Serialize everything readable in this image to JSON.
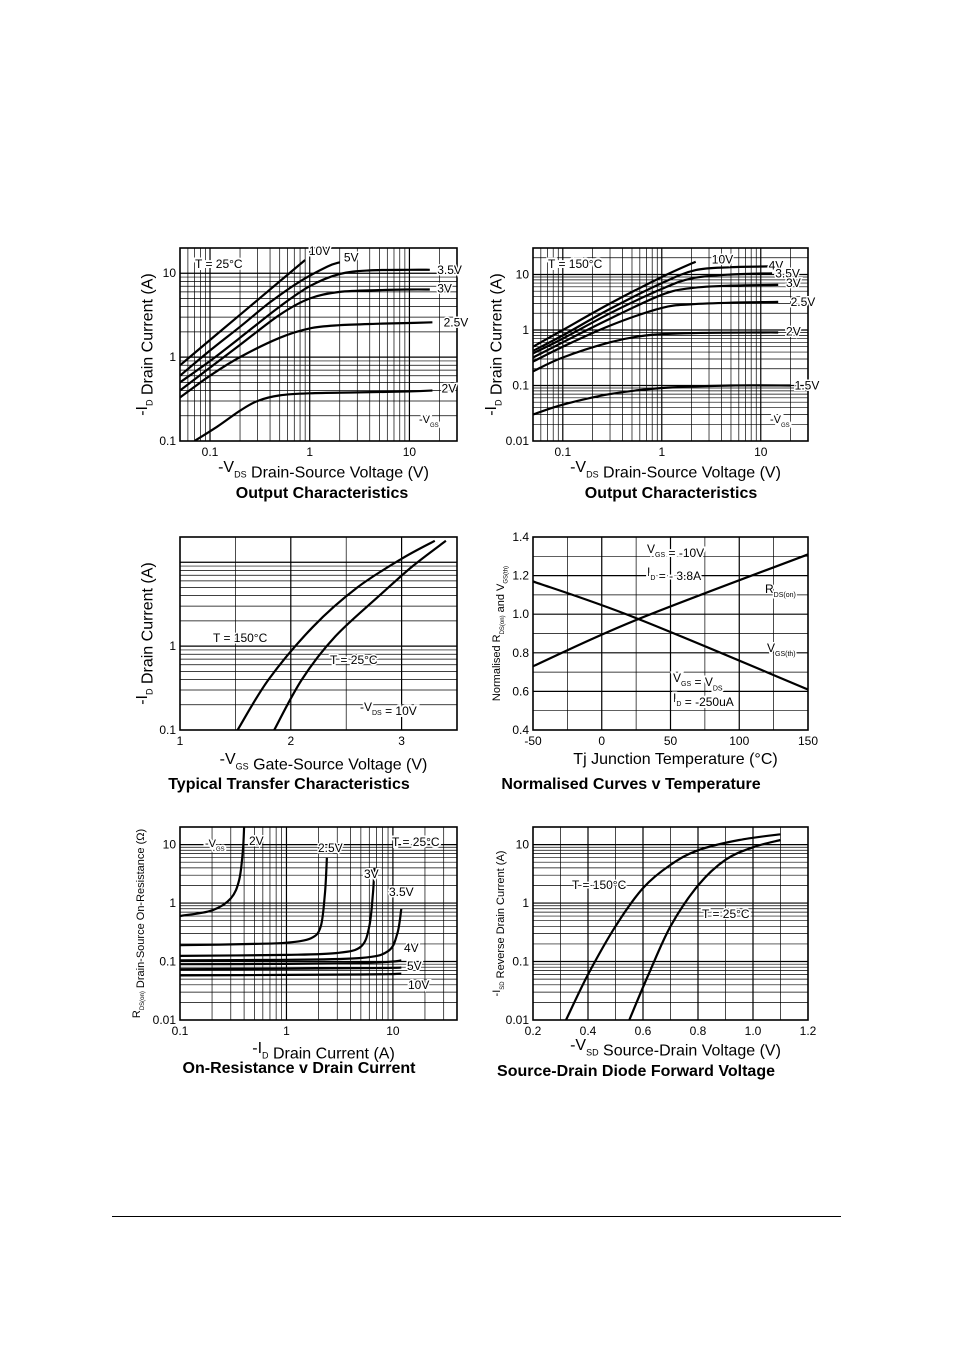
{
  "chart_data": [
    {
      "id": "output-25",
      "type": "line",
      "title": "Output Characteristics",
      "xlabel": "-V_DS Drain-Source Voltage (V)",
      "ylabel": "-I_D Drain Current (A)",
      "xscale": "log",
      "yscale": "log",
      "xlim": [
        0.05,
        30
      ],
      "ylim": [
        0.1,
        20
      ],
      "x_ticks": [
        0.1,
        1,
        10
      ],
      "x_tick_labels": [
        "0.1",
        "1",
        "10"
      ],
      "y_ticks": [
        0.1,
        1,
        10
      ],
      "y_tick_labels": [
        "0.1",
        "1",
        "10"
      ],
      "grid": true,
      "annotations": [
        "T = 25°C"
      ],
      "legend_title": "-V_GS",
      "series": [
        {
          "name": "10V",
          "label_at": [
            0.98,
            18.5
          ],
          "points": [
            [
              0.05,
              0.8
            ],
            [
              0.1,
              1.6
            ],
            [
              0.2,
              3.2
            ],
            [
              0.5,
              8
            ],
            [
              0.9,
              14.4
            ]
          ]
        },
        {
          "name": "5V",
          "label_at": [
            2.2,
            15.5
          ],
          "points": [
            [
              0.05,
              0.6
            ],
            [
              0.1,
              1.2
            ],
            [
              0.2,
              2.3
            ],
            [
              0.4,
              4.5
            ],
            [
              0.8,
              8
            ],
            [
              1.5,
              12
            ],
            [
              2.0,
              13.5
            ]
          ]
        },
        {
          "name": "3.5V",
          "label_at": [
            19,
            11
          ],
          "points": [
            [
              0.05,
              0.5
            ],
            [
              0.1,
              0.9
            ],
            [
              0.2,
              1.7
            ],
            [
              0.5,
              4
            ],
            [
              1,
              7
            ],
            [
              2,
              9.8
            ],
            [
              4,
              10.8
            ],
            [
              10,
              11
            ],
            [
              16,
              11
            ]
          ]
        },
        {
          "name": "3V",
          "label_at": [
            19,
            6.6
          ],
          "points": [
            [
              0.05,
              0.4
            ],
            [
              0.1,
              0.75
            ],
            [
              0.2,
              1.4
            ],
            [
              0.5,
              3.2
            ],
            [
              1,
              5
            ],
            [
              2,
              6
            ],
            [
              5,
              6.3
            ],
            [
              10,
              6.4
            ],
            [
              16,
              6.4
            ]
          ]
        },
        {
          "name": "2.5V",
          "label_at": [
            22,
            2.6
          ],
          "points": [
            [
              0.05,
              0.33
            ],
            [
              0.1,
              0.6
            ],
            [
              0.2,
              1.0
            ],
            [
              0.5,
              1.7
            ],
            [
              1,
              2.2
            ],
            [
              2,
              2.4
            ],
            [
              5,
              2.5
            ],
            [
              10,
              2.55
            ],
            [
              17,
              2.6
            ]
          ]
        },
        {
          "name": "2V",
          "label_at": [
            21,
            0.42
          ],
          "points": [
            [
              0.07,
              0.1
            ],
            [
              0.12,
              0.15
            ],
            [
              0.2,
              0.23
            ],
            [
              0.3,
              0.3
            ],
            [
              0.5,
              0.35
            ],
            [
              1,
              0.37
            ],
            [
              3,
              0.38
            ],
            [
              10,
              0.39
            ],
            [
              17,
              0.4
            ]
          ]
        }
      ]
    },
    {
      "id": "output-150",
      "type": "line",
      "title": "Output Characteristics",
      "xlabel": "-V_DS Drain-Source Voltage (V)",
      "ylabel": "-I_D Drain Current (A)",
      "xscale": "log",
      "yscale": "log",
      "xlim": [
        0.05,
        30
      ],
      "ylim": [
        0.01,
        30
      ],
      "x_ticks": [
        0.1,
        1,
        10
      ],
      "x_tick_labels": [
        "0.1",
        "1",
        "10"
      ],
      "y_ticks": [
        0.01,
        0.1,
        1,
        10
      ],
      "y_tick_labels": [
        "0.01",
        "0.1",
        "1",
        "10"
      ],
      "grid": true,
      "annotations": [
        "T = 150°C"
      ],
      "legend_title": "-V_GS",
      "series": [
        {
          "name": "10V",
          "label_at": [
            3.2,
            18.5
          ],
          "points": [
            [
              0.05,
              0.5
            ],
            [
              0.1,
              1.0
            ],
            [
              0.3,
              3.0
            ],
            [
              1,
              9
            ],
            [
              2.2,
              17
            ]
          ]
        },
        {
          "name": "4V",
          "label_at": [
            12,
            14.5
          ],
          "points": [
            [
              0.05,
              0.42
            ],
            [
              0.1,
              0.8
            ],
            [
              0.3,
              2.4
            ],
            [
              1,
              7
            ],
            [
              2.2,
              12
            ],
            [
              5,
              13.5
            ],
            [
              12,
              14
            ]
          ]
        },
        {
          "name": "3.5V",
          "label_at": [
            14,
            10.5
          ],
          "points": [
            [
              0.05,
              0.38
            ],
            [
              0.1,
              0.7
            ],
            [
              0.3,
              2.0
            ],
            [
              1,
              5.5
            ],
            [
              2,
              8.5
            ],
            [
              5,
              10
            ],
            [
              13,
              10.5
            ]
          ]
        },
        {
          "name": "3V",
          "label_at": [
            18,
            7
          ],
          "points": [
            [
              0.05,
              0.32
            ],
            [
              0.1,
              0.6
            ],
            [
              0.3,
              1.6
            ],
            [
              1,
              4.3
            ],
            [
              2,
              5.7
            ],
            [
              5,
              6.3
            ],
            [
              15,
              6.5
            ]
          ]
        },
        {
          "name": "2.5V",
          "label_at": [
            20,
            3.2
          ],
          "points": [
            [
              0.05,
              0.27
            ],
            [
              0.1,
              0.5
            ],
            [
              0.3,
              1.2
            ],
            [
              1,
              2.5
            ],
            [
              2,
              2.9
            ],
            [
              5,
              3.1
            ],
            [
              15,
              3.2
            ]
          ]
        },
        {
          "name": "2V",
          "label_at": [
            18,
            0.93
          ],
          "points": [
            [
              0.05,
              0.18
            ],
            [
              0.1,
              0.32
            ],
            [
              0.3,
              0.6
            ],
            [
              0.7,
              0.8
            ],
            [
              2,
              0.88
            ],
            [
              10,
              0.9
            ],
            [
              15,
              0.9
            ]
          ]
        },
        {
          "name": "1.5V",
          "label_at": [
            22,
            0.1
          ],
          "points": [
            [
              0.05,
              0.03
            ],
            [
              0.1,
              0.045
            ],
            [
              0.3,
              0.07
            ],
            [
              1,
              0.09
            ],
            [
              5,
              0.1
            ],
            [
              20,
              0.1
            ]
          ]
        }
      ]
    },
    {
      "id": "transfer",
      "type": "line",
      "title": "Typical Transfer Characteristics",
      "xlabel": "-V_GS Gate-Source Voltage (V)",
      "ylabel": "-I_D Drain Current (A)",
      "xscale": "linear",
      "yscale": "log",
      "xlim": [
        1,
        3.5
      ],
      "ylim": [
        0.1,
        20
      ],
      "x_ticks": [
        1,
        2,
        3
      ],
      "x_tick_labels": [
        "1",
        "2",
        "3"
      ],
      "y_ticks": [
        0.1,
        1
      ],
      "y_tick_labels": [
        "0.1",
        "1"
      ],
      "grid": true,
      "annotations": [
        "-V_DS = 10V"
      ],
      "series": [
        {
          "name": "T = 150°C",
          "label_at": [
            1.3,
            1.0
          ],
          "points": [
            [
              1.52,
              0.1
            ],
            [
              1.8,
              0.4
            ],
            [
              2.2,
              1.7
            ],
            [
              2.6,
              5
            ],
            [
              3.0,
              11
            ],
            [
              3.3,
              18
            ]
          ]
        },
        {
          "name": "T = 25°C",
          "label_at": [
            2.35,
            0.6
          ],
          "points": [
            [
              1.85,
              0.1
            ],
            [
              2.1,
              0.4
            ],
            [
              2.4,
              1.3
            ],
            [
              2.8,
              4
            ],
            [
              3.1,
              9
            ],
            [
              3.4,
              18
            ]
          ]
        }
      ]
    },
    {
      "id": "normalised",
      "type": "line",
      "title": "Normalised Curves v Temperature",
      "xlabel": "Tj Junction Temperature (°C)",
      "ylabel": "Normalised R_DS(on) and V_GS(th)",
      "xscale": "linear",
      "yscale": "linear",
      "xlim": [
        -50,
        150
      ],
      "ylim": [
        0.4,
        1.4
      ],
      "x_ticks": [
        -50,
        0,
        50,
        100,
        150
      ],
      "x_tick_labels": [
        "-50",
        "0",
        "50",
        "100",
        "150"
      ],
      "y_ticks": [
        0.4,
        0.6,
        0.8,
        1.0,
        1.2,
        1.4
      ],
      "y_tick_labels": [
        "0.4",
        "0.6",
        "0.8",
        "1.0",
        "1.2",
        "1.4"
      ],
      "grid": true,
      "annotations": [
        "V_GS = -10V",
        "I_D = - 3.8A",
        "V_GS = V_DS",
        "I_D = -250uA"
      ],
      "series": [
        {
          "name": "R_DS(on)",
          "points": [
            [
              -50,
              0.73
            ],
            [
              25,
              0.97
            ],
            [
              150,
              1.31
            ]
          ]
        },
        {
          "name": "V_GS(th)",
          "points": [
            [
              -50,
              1.17
            ],
            [
              25,
              0.98
            ],
            [
              150,
              0.61
            ]
          ]
        }
      ]
    },
    {
      "id": "on-resistance",
      "type": "line",
      "title": "On-Resistance v Drain Current",
      "xlabel": "-I_D Drain Current (A)",
      "ylabel": "R_DS(on) Drain-Source On-Resistance (Ω)",
      "xscale": "log",
      "yscale": "log",
      "xlim": [
        0.1,
        40
      ],
      "ylim": [
        0.01,
        20
      ],
      "x_ticks": [
        0.1,
        1,
        10
      ],
      "x_tick_labels": [
        "0.1",
        "1",
        "10"
      ],
      "y_ticks": [
        0.01,
        0.1,
        1,
        10
      ],
      "y_tick_labels": [
        "0.01",
        "0.1",
        "1",
        "10"
      ],
      "grid": true,
      "annotations": [
        "T = 25°C"
      ],
      "legend_title": "-V_GS",
      "series": [
        {
          "name": "2V",
          "points": [
            [
              0.1,
              0.6
            ],
            [
              0.2,
              0.75
            ],
            [
              0.3,
              1.2
            ],
            [
              0.36,
              2.5
            ],
            [
              0.39,
              8
            ],
            [
              0.4,
              20
            ]
          ]
        },
        {
          "name": "2.5V",
          "points": [
            [
              0.1,
              0.19
            ],
            [
              0.5,
              0.2
            ],
            [
              1,
              0.21
            ],
            [
              1.7,
              0.25
            ],
            [
              2.1,
              0.4
            ],
            [
              2.3,
              1.5
            ],
            [
              2.4,
              6
            ]
          ]
        },
        {
          "name": "3V",
          "points": [
            [
              0.1,
              0.125
            ],
            [
              1,
              0.13
            ],
            [
              3,
              0.14
            ],
            [
              5,
              0.18
            ],
            [
              6,
              0.4
            ],
            [
              6.5,
              1.5
            ],
            [
              6.7,
              4
            ]
          ]
        },
        {
          "name": "3.5V",
          "points": [
            [
              0.1,
              0.105
            ],
            [
              1,
              0.107
            ],
            [
              5,
              0.115
            ],
            [
              9,
              0.15
            ],
            [
              11,
              0.3
            ],
            [
              12,
              0.8
            ]
          ]
        },
        {
          "name": "4V",
          "points": [
            [
              0.1,
              0.09
            ],
            [
              1,
              0.091
            ],
            [
              5,
              0.094
            ],
            [
              10,
              0.1
            ],
            [
              12,
              0.105
            ]
          ]
        },
        {
          "name": "5V",
          "points": [
            [
              0.1,
              0.074
            ],
            [
              1,
              0.075
            ],
            [
              5,
              0.077
            ],
            [
              10,
              0.078
            ],
            [
              12,
              0.079
            ]
          ]
        },
        {
          "name": "10V",
          "points": [
            [
              0.1,
              0.058
            ],
            [
              1,
              0.059
            ],
            [
              5,
              0.06
            ],
            [
              10,
              0.061
            ],
            [
              12,
              0.062
            ]
          ]
        }
      ]
    },
    {
      "id": "diode",
      "type": "line",
      "title": "Source-Drain Diode Forward Voltage",
      "xlabel": "-V_SD Source-Drain Voltage (V)",
      "ylabel": "-I_SD Reverse Drain Current (A)",
      "xscale": "linear",
      "yscale": "log",
      "xlim": [
        0.2,
        1.2
      ],
      "ylim": [
        0.01,
        20
      ],
      "x_ticks": [
        0.2,
        0.4,
        0.6,
        0.8,
        1.0,
        1.2
      ],
      "x_tick_labels": [
        "0.2",
        "0.4",
        "0.6",
        "0.8",
        "1.0",
        "1.2"
      ],
      "y_ticks": [
        0.01,
        0.1,
        1,
        10
      ],
      "y_tick_labels": [
        "0.01",
        "0.1",
        "1",
        "10"
      ],
      "grid": true,
      "series": [
        {
          "name": "T = 150°C",
          "points": [
            [
              0.32,
              0.01
            ],
            [
              0.4,
              0.06
            ],
            [
              0.5,
              0.4
            ],
            [
              0.6,
              1.8
            ],
            [
              0.7,
              4.5
            ],
            [
              0.8,
              8
            ],
            [
              0.95,
              12
            ],
            [
              1.1,
              15
            ]
          ]
        },
        {
          "name": "T = 25°C",
          "points": [
            [
              0.55,
              0.01
            ],
            [
              0.62,
              0.06
            ],
            [
              0.7,
              0.4
            ],
            [
              0.8,
              2
            ],
            [
              0.9,
              5.5
            ],
            [
              1.0,
              9
            ],
            [
              1.1,
              12
            ]
          ]
        }
      ]
    }
  ]
}
